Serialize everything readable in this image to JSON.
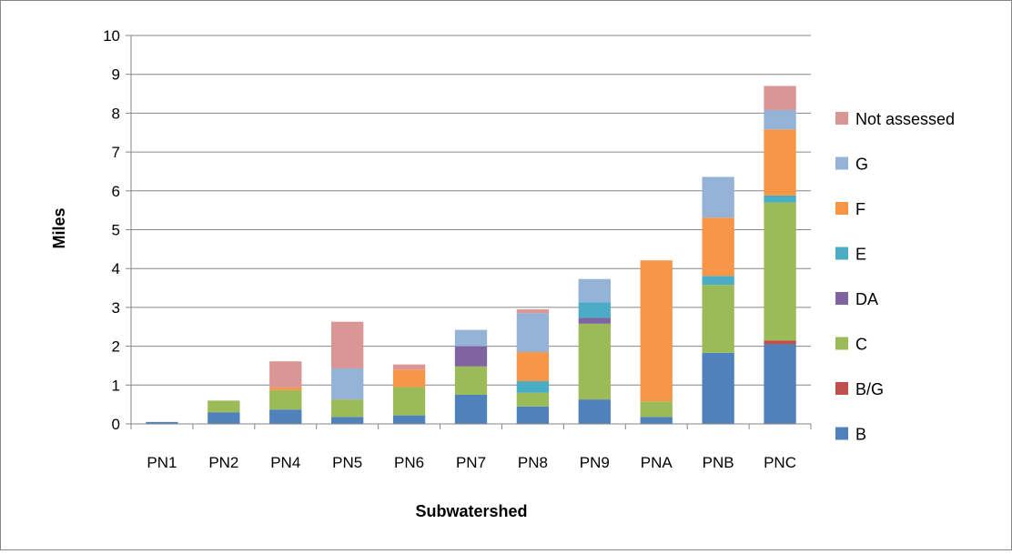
{
  "chart_data": {
    "type": "bar",
    "stacked": true,
    "title": "",
    "xlabel": "Subwatershed",
    "ylabel": "Miles",
    "ylim": [
      0,
      10
    ],
    "yticks": [
      0,
      1,
      2,
      3,
      4,
      5,
      6,
      7,
      8,
      9,
      10
    ],
    "grid": true,
    "legend_position": "right",
    "categories": [
      "PN1",
      "PN2",
      "PN4",
      "PN5",
      "PN6",
      "PN7",
      "PN8",
      "PN9",
      "PNA",
      "PNB",
      "PNC"
    ],
    "series": [
      {
        "name": "B",
        "color": "#4F81BD",
        "values": [
          0.05,
          0.3,
          0.37,
          0.18,
          0.22,
          0.75,
          0.45,
          0.63,
          0.18,
          1.83,
          2.05
        ]
      },
      {
        "name": "B/G",
        "color": "#C0504D",
        "values": [
          0,
          0,
          0,
          0,
          0,
          0,
          0,
          0,
          0,
          0,
          0.1
        ]
      },
      {
        "name": "C",
        "color": "#9BBB59",
        "values": [
          0,
          0.3,
          0.5,
          0.45,
          0.73,
          0.73,
          0.35,
          1.95,
          0.4,
          1.75,
          3.55
        ]
      },
      {
        "name": "DA",
        "color": "#8064A2",
        "values": [
          0,
          0,
          0,
          0,
          0,
          0.52,
          0,
          0.15,
          0,
          0,
          0
        ]
      },
      {
        "name": "E",
        "color": "#4BACC6",
        "values": [
          0,
          0,
          0,
          0,
          0,
          0,
          0.3,
          0.4,
          0,
          0.23,
          0.18
        ]
      },
      {
        "name": "F",
        "color": "#F79646",
        "values": [
          0,
          0,
          0.07,
          0,
          0.45,
          0,
          0.75,
          0,
          3.63,
          1.5,
          1.7
        ]
      },
      {
        "name": "G",
        "color": "#95B3D7",
        "values": [
          0,
          0,
          0,
          0.8,
          0,
          0.42,
          1.0,
          0.6,
          0,
          1.05,
          0.5
        ]
      },
      {
        "name": "Not assessed",
        "color": "#D99694",
        "values": [
          0,
          0,
          0.67,
          1.2,
          0.13,
          0,
          0.1,
          0,
          0,
          0,
          0.62
        ]
      }
    ]
  }
}
